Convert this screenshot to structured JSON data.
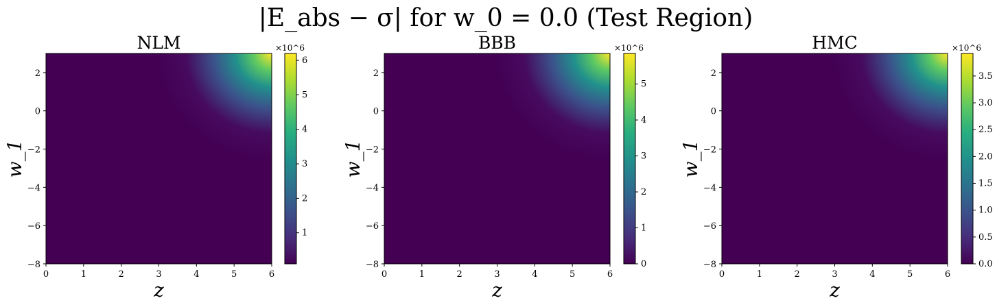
{
  "figure": {
    "suptitle": "|E_abs − σ| for w_0 = 0.0 (Test Region)"
  },
  "chart_data": [
    {
      "type": "heatmap",
      "title": "NLM",
      "xlabel": "z",
      "ylabel": "w_1",
      "xlim": [
        0,
        6
      ],
      "ylim": [
        -8,
        3
      ],
      "xticks": [
        "0",
        "1",
        "2",
        "3",
        "4",
        "5",
        "6"
      ],
      "yticks": [
        "2",
        "0",
        "−2",
        "−4",
        "−6",
        "−8"
      ],
      "colormap": "viridis",
      "colorbar": {
        "multiplier": "×10^6",
        "range": [
          0.1,
          6.2
        ],
        "ticks": [
          "1",
          "2",
          "3",
          "4",
          "5",
          "6"
        ]
      },
      "values_description": "near 0 almost everywhere; rises sharply toward the top-right corner (z→6, w_1→3), reaching about 6.2×10^6"
    },
    {
      "type": "heatmap",
      "title": "BBB",
      "xlabel": "z",
      "ylabel": "w_1",
      "xlim": [
        0,
        6
      ],
      "ylim": [
        -8,
        3
      ],
      "xticks": [
        "0",
        "1",
        "2",
        "3",
        "4",
        "5",
        "6"
      ],
      "yticks": [
        "2",
        "0",
        "−2",
        "−4",
        "−6",
        "−8"
      ],
      "colormap": "viridis",
      "colorbar": {
        "multiplier": "×10^6",
        "range": [
          0,
          5.85
        ],
        "ticks": [
          "0",
          "1",
          "2",
          "3",
          "4",
          "5"
        ]
      },
      "values_description": "near 0 almost everywhere; rises sharply toward the top-right corner (z→6, w_1→3), reaching about 5.85×10^6"
    },
    {
      "type": "heatmap",
      "title": "HMC",
      "xlabel": "z",
      "ylabel": "w_1",
      "xlim": [
        0,
        6
      ],
      "ylim": [
        -8,
        3
      ],
      "xticks": [
        "0",
        "1",
        "2",
        "3",
        "4",
        "5",
        "6"
      ],
      "yticks": [
        "2",
        "0",
        "−2",
        "−4",
        "−6",
        "−8"
      ],
      "colormap": "viridis",
      "colorbar": {
        "multiplier": "×10^6",
        "range": [
          0,
          3.92
        ],
        "ticks": [
          "0.0",
          "0.5",
          "1.0",
          "1.5",
          "2.0",
          "2.5",
          "3.0",
          "3.5"
        ]
      },
      "values_description": "near 0 almost everywhere; rises sharply toward the top-right corner (z→6, w_1→3), reaching about 3.92×10^6"
    }
  ]
}
